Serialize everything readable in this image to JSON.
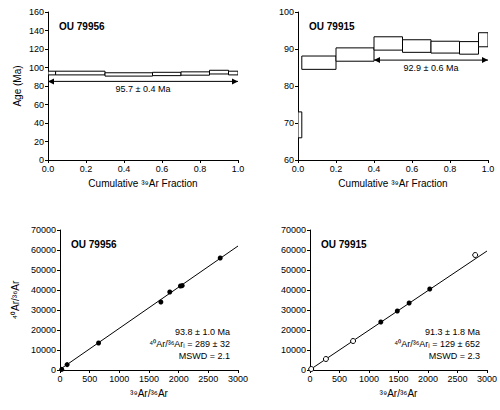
{
  "chart_data": [
    {
      "type": "steps",
      "title": "OU 79956",
      "x_label": "Cumulative ³⁹Ar Fraction",
      "y_label": "Age (Ma)",
      "xlim": [
        0,
        1
      ],
      "xticks": [
        {
          "value": 0,
          "label": "0.0"
        },
        {
          "value": 0.2,
          "label": "0.2"
        },
        {
          "value": 0.4,
          "label": "0.4"
        },
        {
          "value": 0.6,
          "label": "0.6"
        },
        {
          "value": 0.8,
          "label": "0.8"
        },
        {
          "value": 1,
          "label": "1.0"
        }
      ],
      "ylim": [
        0,
        160
      ],
      "yticks": [
        0,
        20,
        40,
        60,
        80,
        100,
        120,
        140,
        160
      ],
      "grid": false,
      "series": [
        {
          "type": "steps",
          "color": "#000000",
          "x0": [
            0,
            0.04,
            0.3,
            0.55,
            0.7,
            0.85,
            0.95
          ],
          "x1": [
            0.04,
            0.3,
            0.55,
            0.7,
            0.85,
            0.95,
            1
          ],
          "values": [
            94,
            94,
            92.5,
            93,
            93.5,
            95,
            94
          ],
          "errors": [
            2,
            2,
            1.8,
            1.8,
            1.8,
            2,
            2
          ]
        }
      ],
      "plateau": {
        "label": "95.7 ± 0.4 Ma",
        "x": [
          0,
          1
        ],
        "y": 85
      }
    },
    {
      "type": "steps",
      "title": "OU 79915",
      "x_label": "Cumulative ³⁹Ar Fraction",
      "xlim": [
        0,
        1
      ],
      "xticks": [
        {
          "value": 0,
          "label": "0.0"
        },
        {
          "value": 0.2,
          "label": "0.2"
        },
        {
          "value": 0.4,
          "label": "0.4"
        },
        {
          "value": 0.6,
          "label": "0.6"
        },
        {
          "value": 0.8,
          "label": "0.8"
        },
        {
          "value": 1,
          "label": "1.0"
        }
      ],
      "ylim": [
        60,
        100
      ],
      "yticks": [
        60,
        70,
        80,
        90,
        100
      ],
      "grid": false,
      "series": [
        {
          "type": "steps",
          "color": "#000000",
          "x0": [
            0,
            0.02,
            0.2,
            0.4,
            0.55,
            0.7,
            0.85,
            0.95
          ],
          "x1": [
            0.02,
            0.2,
            0.4,
            0.55,
            0.7,
            0.85,
            0.95,
            1
          ],
          "values": [
            69.5,
            86.3,
            88.5,
            91.5,
            90.8,
            90.5,
            90.3,
            92.5
          ],
          "errors": [
            3.5,
            1.8,
            1.8,
            1.8,
            1.7,
            1.6,
            1.7,
            1.9
          ]
        }
      ],
      "plateau": {
        "label": "92.9 ± 0.6 Ma",
        "x": [
          0.4,
          1
        ],
        "y": 87
      }
    },
    {
      "type": "scatter",
      "title": "OU 79956",
      "x_label": "³⁹Ar/³⁶Ar",
      "y_label": "⁴⁰Ar/³⁶Ar",
      "xlim": [
        0,
        3000
      ],
      "xticks": [
        0,
        500,
        1000,
        1500,
        2000,
        2500,
        3000
      ],
      "ylim": [
        0,
        70000
      ],
      "yticks": [
        0,
        10000,
        20000,
        30000,
        40000,
        50000,
        60000,
        70000
      ],
      "grid": false,
      "series": [
        {
          "type": "scatter",
          "marker": "circle",
          "color": "#000000",
          "x": [
            30,
            120,
            650,
            1700,
            1850,
            2030,
            2060,
            2700
          ],
          "y": [
            300,
            2700,
            13500,
            34000,
            39000,
            42000,
            42200,
            56000
          ]
        },
        {
          "type": "line",
          "line_style": "solid",
          "color": "#000000",
          "x": [
            0,
            3000
          ],
          "y": [
            289,
            62000
          ]
        }
      ],
      "annotation": [
        "93.8 ± 1.0 Ma",
        "⁴⁰Ar/³⁶Arᵢ = 289 ± 32",
        "MSWD = 2.1"
      ]
    },
    {
      "type": "scatter",
      "title": "OU 79915",
      "x_label": "³⁹Ar/³⁶Ar",
      "xlim": [
        0,
        3000
      ],
      "xticks": [
        0,
        500,
        1000,
        1500,
        2000,
        2500,
        3000
      ],
      "ylim": [
        0,
        70000
      ],
      "yticks": [
        0,
        10000,
        20000,
        30000,
        40000,
        50000,
        60000,
        70000
      ],
      "grid": false,
      "series": [
        {
          "type": "scatter",
          "marker": "circle",
          "color": "#000000",
          "x": [
            1200,
            1480,
            1680,
            2030
          ],
          "y": [
            24000,
            29500,
            33500,
            40500
          ]
        },
        {
          "type": "scatter",
          "marker": "open",
          "color": "#000000",
          "x": [
            20,
            270,
            730,
            2800
          ],
          "y": [
            500,
            5500,
            14500,
            57500
          ]
        },
        {
          "type": "line",
          "line_style": "solid",
          "color": "#000000",
          "x": [
            0,
            3000
          ],
          "y": [
            129,
            59500
          ]
        }
      ],
      "annotation": [
        "91.3 ± 1.8 Ma",
        "⁴⁰Ar/³⁶Arᵢ = 129 ± 652",
        "MSWD = 2.3"
      ]
    }
  ]
}
